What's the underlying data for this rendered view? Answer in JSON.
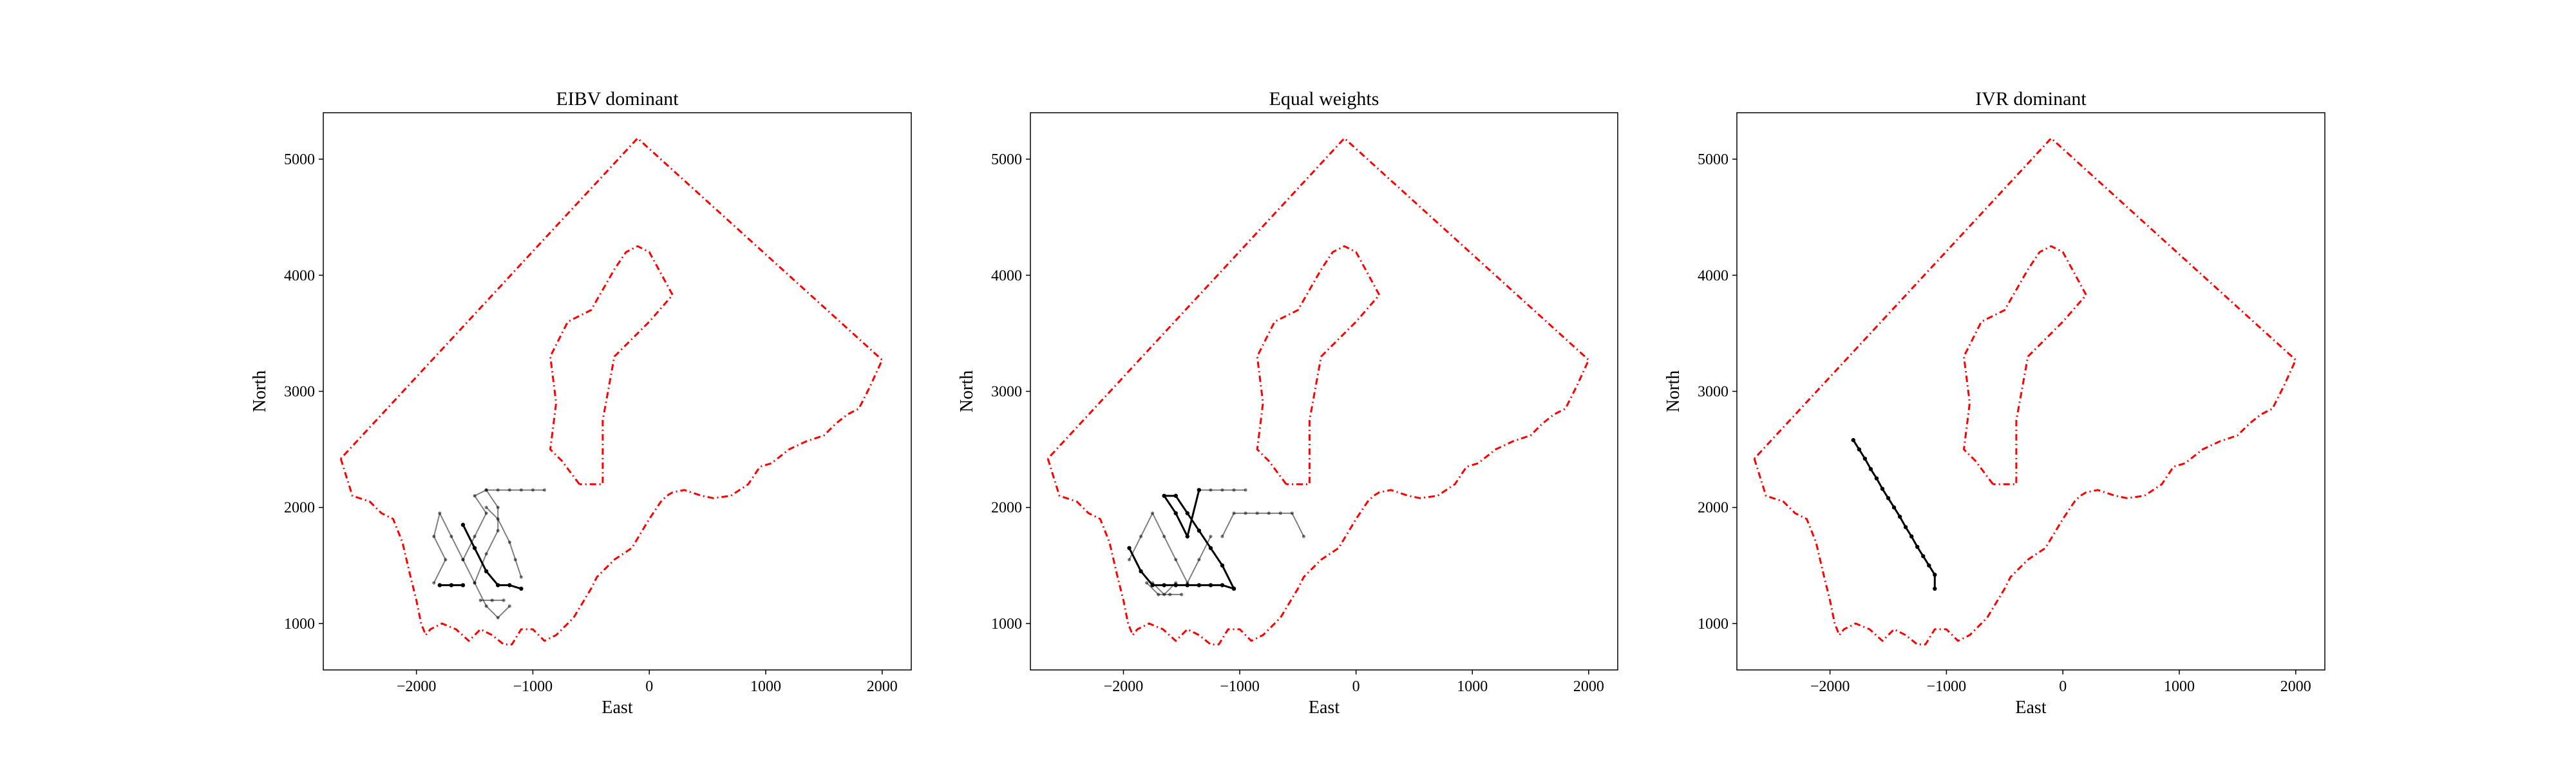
{
  "figure": {
    "background": "#ffffff",
    "boundary_color": "#ff0000",
    "path_color": "#000000"
  },
  "chart_data": [
    {
      "type": "line",
      "title": "EIBV dominant",
      "xlabel": "East",
      "ylabel": "North",
      "xlim": [
        -2800,
        2250
      ],
      "ylim": [
        600,
        5400
      ],
      "xticks": [
        -2000,
        -1000,
        0,
        1000,
        2000
      ],
      "xtick_labels": [
        "−2000",
        "−1000",
        "0",
        "1000",
        "2000"
      ],
      "yticks": [
        1000,
        2000,
        3000,
        4000,
        5000
      ],
      "ytick_labels": [
        "1000",
        "2000",
        "3000",
        "4000",
        "5000"
      ],
      "grid": false,
      "series": [
        {
          "role": "boundary",
          "style": "dash-dot",
          "color": "#ff0000",
          "x": [
            -2650,
            -2550,
            -2400,
            -2300,
            -2200,
            -2120,
            -2050,
            -2000,
            -1960,
            -1920,
            -1880,
            -1780,
            -1660,
            -1550,
            -1450,
            -1350,
            -1250,
            -1180,
            -1100,
            -1000,
            -900,
            -800,
            -650,
            -500,
            -450,
            -400,
            -300,
            -150,
            0,
            100,
            150,
            200,
            300,
            450,
            550,
            700,
            850,
            950,
            1050,
            1200,
            1350,
            1500,
            1600,
            1700,
            1800,
            1850,
            1900,
            2000,
            -100,
            -2650
          ],
          "y": [
            2420,
            2100,
            2050,
            1950,
            1900,
            1700,
            1400,
            1200,
            1000,
            900,
            950,
            1000,
            950,
            850,
            950,
            900,
            820,
            820,
            950,
            950,
            850,
            900,
            1050,
            1300,
            1400,
            1450,
            1550,
            1650,
            1900,
            2050,
            2100,
            2130,
            2150,
            2100,
            2080,
            2100,
            2200,
            2350,
            2380,
            2500,
            2570,
            2620,
            2720,
            2800,
            2850,
            2950,
            3050,
            3270,
            5180,
            2420
          ]
        },
        {
          "role": "boundary",
          "style": "dash-dot",
          "color": "#ff0000",
          "x": [
            -600,
            -750,
            -850,
            -800,
            -850,
            -700,
            -500,
            -300,
            -200,
            -100,
            0,
            200,
            0,
            -300,
            -400,
            -400,
            -600
          ],
          "y": [
            2200,
            2400,
            2500,
            2900,
            3300,
            3600,
            3700,
            4050,
            4200,
            4250,
            4200,
            3830,
            3600,
            3300,
            2750,
            2200,
            2200
          ]
        },
        {
          "role": "trajectory",
          "style": "solid-marker",
          "color": "#000000",
          "alpha": 0.5,
          "x": [
            -1850,
            -1750,
            -1850,
            -1800,
            -1700,
            -1600,
            -1500,
            -1600,
            -1500,
            -1400,
            -1500,
            -1400,
            -1300,
            -1300,
            -1400,
            -1500,
            -1400,
            -1300,
            -1200
          ],
          "y": [
            1350,
            1550,
            1750,
            1950,
            1750,
            1550,
            1350,
            1550,
            1750,
            1950,
            2100,
            2150,
            2000,
            1800,
            1600,
            1350,
            1150,
            1050,
            1150
          ]
        },
        {
          "role": "trajectory",
          "style": "solid-marker",
          "color": "#000000",
          "alpha": 0.5,
          "x": [
            -1400,
            -1300,
            -1200,
            -1100,
            -1000,
            -900
          ],
          "y": [
            2150,
            2150,
            2150,
            2150,
            2150,
            2150
          ]
        },
        {
          "role": "trajectory",
          "style": "solid-marker",
          "color": "#000000",
          "alpha": 0.5,
          "x": [
            -1400,
            -1300,
            -1200,
            -1150,
            -1100
          ],
          "y": [
            2000,
            1900,
            1700,
            1550,
            1400
          ]
        },
        {
          "role": "trajectory",
          "style": "solid-marker",
          "color": "#000000",
          "alpha": 0.5,
          "x": [
            -1450,
            -1350,
            -1250
          ],
          "y": [
            1200,
            1200,
            1200
          ]
        },
        {
          "role": "trajectory",
          "style": "solid-marker",
          "color": "#000000",
          "alpha": 1.0,
          "x": [
            -1600,
            -1500,
            -1400,
            -1300,
            -1200,
            -1100
          ],
          "y": [
            1850,
            1650,
            1450,
            1330,
            1330,
            1300
          ]
        },
        {
          "role": "trajectory",
          "style": "solid-marker",
          "color": "#000000",
          "alpha": 1.0,
          "x": [
            -1600,
            -1700,
            -1800
          ],
          "y": [
            1330,
            1330,
            1330
          ]
        }
      ]
    },
    {
      "type": "line",
      "title": "Equal weights",
      "xlabel": "East",
      "ylabel": "North",
      "xlim": [
        -2800,
        2250
      ],
      "ylim": [
        600,
        5400
      ],
      "xticks": [
        -2000,
        -1000,
        0,
        1000,
        2000
      ],
      "xtick_labels": [
        "−2000",
        "−1000",
        "0",
        "1000",
        "2000"
      ],
      "yticks": [
        1000,
        2000,
        3000,
        4000,
        5000
      ],
      "ytick_labels": [
        "1000",
        "2000",
        "3000",
        "4000",
        "5000"
      ],
      "grid": false,
      "series": [
        {
          "role": "boundary",
          "style": "dash-dot",
          "color": "#ff0000",
          "x": [
            -2650,
            -2550,
            -2400,
            -2300,
            -2200,
            -2120,
            -2050,
            -2000,
            -1960,
            -1920,
            -1880,
            -1780,
            -1660,
            -1550,
            -1450,
            -1350,
            -1250,
            -1180,
            -1100,
            -1000,
            -900,
            -800,
            -650,
            -500,
            -450,
            -400,
            -300,
            -150,
            0,
            100,
            150,
            200,
            300,
            450,
            550,
            700,
            850,
            950,
            1050,
            1200,
            1350,
            1500,
            1600,
            1700,
            1800,
            1850,
            1900,
            2000,
            -100,
            -2650
          ],
          "y": [
            2420,
            2100,
            2050,
            1950,
            1900,
            1700,
            1400,
            1200,
            1000,
            900,
            950,
            1000,
            950,
            850,
            950,
            900,
            820,
            820,
            950,
            950,
            850,
            900,
            1050,
            1300,
            1400,
            1450,
            1550,
            1650,
            1900,
            2050,
            2100,
            2130,
            2150,
            2100,
            2080,
            2100,
            2200,
            2350,
            2380,
            2500,
            2570,
            2620,
            2720,
            2800,
            2850,
            2950,
            3050,
            3270,
            5180,
            2420
          ]
        },
        {
          "role": "boundary",
          "style": "dash-dot",
          "color": "#ff0000",
          "x": [
            -600,
            -750,
            -850,
            -800,
            -850,
            -700,
            -500,
            -300,
            -200,
            -100,
            0,
            200,
            0,
            -300,
            -400,
            -400,
            -600
          ],
          "y": [
            2200,
            2400,
            2500,
            2900,
            3300,
            3600,
            3700,
            4050,
            4200,
            4250,
            4200,
            3830,
            3600,
            3300,
            2750,
            2200,
            2200
          ]
        },
        {
          "role": "trajectory",
          "style": "solid-marker",
          "color": "#000000",
          "alpha": 0.5,
          "x": [
            -1950,
            -1850,
            -1750,
            -1650,
            -1550,
            -1450,
            -1350,
            -1250
          ],
          "y": [
            1550,
            1750,
            1950,
            1750,
            1550,
            1350,
            1550,
            1750
          ]
        },
        {
          "role": "trajectory",
          "style": "solid-marker",
          "color": "#000000",
          "alpha": 0.5,
          "x": [
            -1750,
            -1650,
            -1550
          ],
          "y": [
            1350,
            1250,
            1350
          ]
        },
        {
          "role": "trajectory",
          "style": "solid-marker",
          "color": "#000000",
          "alpha": 0.5,
          "x": [
            -1350,
            -1250,
            -1150,
            -1050,
            -950
          ],
          "y": [
            2150,
            2150,
            2150,
            2150,
            2150
          ]
        },
        {
          "role": "trajectory",
          "style": "solid-marker",
          "color": "#000000",
          "alpha": 0.5,
          "x": [
            -1150,
            -1050,
            -950,
            -850,
            -750,
            -650,
            -550,
            -450
          ],
          "y": [
            1750,
            1950,
            1950,
            1950,
            1950,
            1950,
            1950,
            1750
          ]
        },
        {
          "role": "trajectory",
          "style": "solid-marker",
          "color": "#000000",
          "alpha": 0.5,
          "x": [
            -1800,
            -1700,
            -1600,
            -1500
          ],
          "y": [
            1350,
            1250,
            1250,
            1250
          ]
        },
        {
          "role": "trajectory",
          "style": "solid-marker",
          "color": "#000000",
          "alpha": 1.0,
          "x": [
            -1950,
            -1850,
            -1750,
            -1650,
            -1550,
            -1450,
            -1350,
            -1250,
            -1150,
            -1050
          ],
          "y": [
            1650,
            1450,
            1330,
            1330,
            1330,
            1330,
            1330,
            1330,
            1330,
            1300
          ]
        },
        {
          "role": "trajectory",
          "style": "solid-marker",
          "color": "#000000",
          "alpha": 1.0,
          "x": [
            -1050,
            -1150,
            -1250,
            -1350,
            -1450,
            -1550,
            -1650,
            -1550,
            -1450,
            -1350
          ],
          "y": [
            1300,
            1500,
            1650,
            1800,
            1950,
            2100,
            2100,
            1950,
            1750,
            2150
          ]
        }
      ]
    },
    {
      "type": "line",
      "title": "IVR dominant",
      "xlabel": "East",
      "ylabel": "North",
      "xlim": [
        -2800,
        2250
      ],
      "ylim": [
        600,
        5400
      ],
      "xticks": [
        -2000,
        -1000,
        0,
        1000,
        2000
      ],
      "xtick_labels": [
        "−2000",
        "−1000",
        "0",
        "1000",
        "2000"
      ],
      "yticks": [
        1000,
        2000,
        3000,
        4000,
        5000
      ],
      "ytick_labels": [
        "1000",
        "2000",
        "3000",
        "4000",
        "5000"
      ],
      "grid": false,
      "series": [
        {
          "role": "boundary",
          "style": "dash-dot",
          "color": "#ff0000",
          "x": [
            -2650,
            -2550,
            -2400,
            -2300,
            -2200,
            -2120,
            -2050,
            -2000,
            -1960,
            -1920,
            -1880,
            -1780,
            -1660,
            -1550,
            -1450,
            -1350,
            -1250,
            -1180,
            -1100,
            -1000,
            -900,
            -800,
            -650,
            -500,
            -450,
            -400,
            -300,
            -150,
            0,
            100,
            150,
            200,
            300,
            450,
            550,
            700,
            850,
            950,
            1050,
            1200,
            1350,
            1500,
            1600,
            1700,
            1800,
            1850,
            1900,
            2000,
            -100,
            -2650
          ],
          "y": [
            2420,
            2100,
            2050,
            1950,
            1900,
            1700,
            1400,
            1200,
            1000,
            900,
            950,
            1000,
            950,
            850,
            950,
            900,
            820,
            820,
            950,
            950,
            850,
            900,
            1050,
            1300,
            1400,
            1450,
            1550,
            1650,
            1900,
            2050,
            2100,
            2130,
            2150,
            2100,
            2080,
            2100,
            2200,
            2350,
            2380,
            2500,
            2570,
            2620,
            2720,
            2800,
            2850,
            2950,
            3050,
            3270,
            5180,
            2420
          ]
        },
        {
          "role": "boundary",
          "style": "dash-dot",
          "color": "#ff0000",
          "x": [
            -600,
            -750,
            -850,
            -800,
            -850,
            -700,
            -500,
            -300,
            -200,
            -100,
            0,
            200,
            0,
            -300,
            -400,
            -400,
            -600
          ],
          "y": [
            2200,
            2400,
            2500,
            2900,
            3300,
            3600,
            3700,
            4050,
            4200,
            4250,
            4200,
            3830,
            3600,
            3300,
            2750,
            2200,
            2200
          ]
        },
        {
          "role": "trajectory",
          "style": "solid-marker",
          "color": "#000000",
          "alpha": 1.0,
          "x": [
            -1800,
            -1750,
            -1700,
            -1650,
            -1600,
            -1550,
            -1500,
            -1450,
            -1400,
            -1350,
            -1300,
            -1250,
            -1200,
            -1150,
            -1100,
            -1100
          ],
          "y": [
            2580,
            2500,
            2420,
            2330,
            2250,
            2160,
            2080,
            2000,
            1920,
            1830,
            1750,
            1660,
            1580,
            1500,
            1420,
            1300
          ]
        }
      ]
    }
  ]
}
